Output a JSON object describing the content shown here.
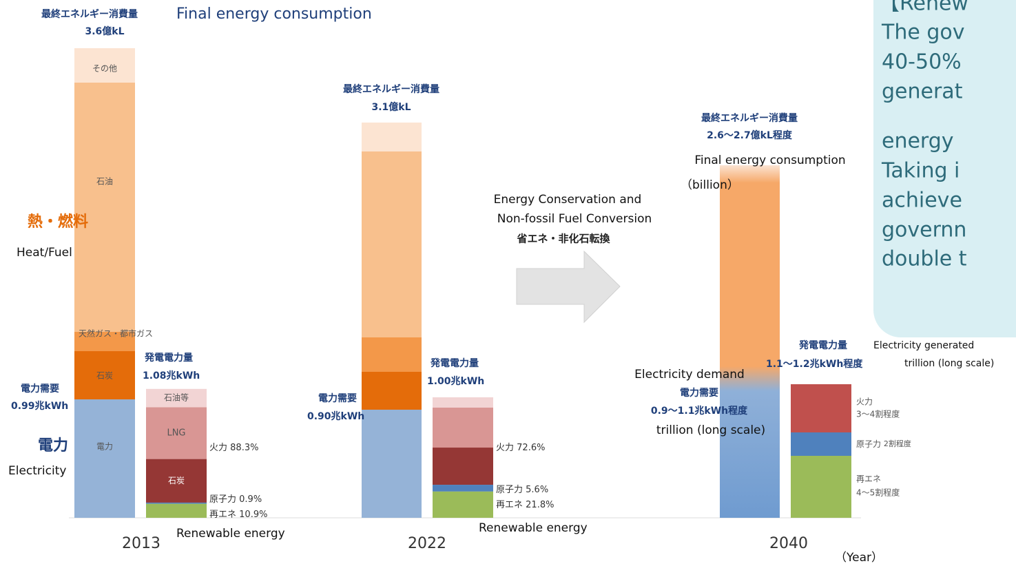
{
  "panel": {
    "lines": [
      "【Renew",
      "The gov",
      "40-50%",
      "generat",
      "energy",
      "Taking i",
      "achieve",
      "governn",
      "double t"
    ]
  },
  "side": {
    "heat_jp": "熱・燃料",
    "heat_en": "Heat/Fuel",
    "power_jp": "電力",
    "power_en": "Electricity"
  },
  "transition": {
    "en_line1": "Energy Conservation and",
    "en_line2": "Non-fossil Fuel Conversion",
    "jp": "省エネ・非化石転換"
  },
  "year_unit": "（Year）",
  "y2013": {
    "year": "2013",
    "final_title": "最終エネルギー消費量",
    "final_title_en": "Final energy consumption",
    "final_total": "3.6億kL",
    "segments": {
      "other": "その他",
      "oil": "石油",
      "gas": "天然ガス・都市ガス",
      "coal": "石炭",
      "power": "電力"
    },
    "demand_title": "電力需要",
    "demand_total": "0.99兆kWh",
    "gen_title": "発電電力量",
    "gen_total": "1.08兆kWh",
    "gen_segments": {
      "oil": "石油等",
      "lng": "LNG",
      "coal": "石炭"
    },
    "shares": [
      {
        "label": "火力",
        "value": 88.3,
        "value_label": "88.3%"
      },
      {
        "label": "原子力",
        "value": 0.9,
        "value_label": "0.9%"
      },
      {
        "label": "再エネ",
        "value": 10.9,
        "value_label": "10.9%"
      }
    ],
    "renewable_en": "Renewable energy"
  },
  "y2022": {
    "year": "2022",
    "final_title": "最終エネルギー消費量",
    "final_total": "3.1億kL",
    "demand_title": "電力需要",
    "demand_total": "0.90兆kWh",
    "gen_title": "発電電力量",
    "gen_total": "1.00兆kWh",
    "shares": [
      {
        "label": "火力",
        "value": 72.6,
        "value_label": "72.6%"
      },
      {
        "label": "原子力",
        "value": 5.6,
        "value_label": "5.6%"
      },
      {
        "label": "再エネ",
        "value": 21.8,
        "value_label": "21.8%"
      }
    ],
    "renewable_en": "Renewable energy"
  },
  "y2040": {
    "year": "2040",
    "final_title": "最終エネルギー消費量",
    "final_total": "2.6〜2.7億kL程度",
    "final_title_en": "Final energy consumption",
    "final_unit_en": "（billion）",
    "demand_title_en": "Electricity demand",
    "demand_title": "電力需要",
    "demand_total": "0.9〜1.1兆kWh程度",
    "demand_unit_en": "trillion (long scale)",
    "gen_title": "発電電力量",
    "gen_title_en": "Electricity generated",
    "gen_total": "1.1〜1.2兆kWh程度",
    "gen_unit_en": "trillion (long scale)",
    "shares": [
      {
        "label": "火力",
        "text": "3〜4割程度"
      },
      {
        "label": "原子力",
        "text": "2割程度"
      },
      {
        "label": "再エネ",
        "text": "4〜5割程度"
      }
    ]
  }
}
